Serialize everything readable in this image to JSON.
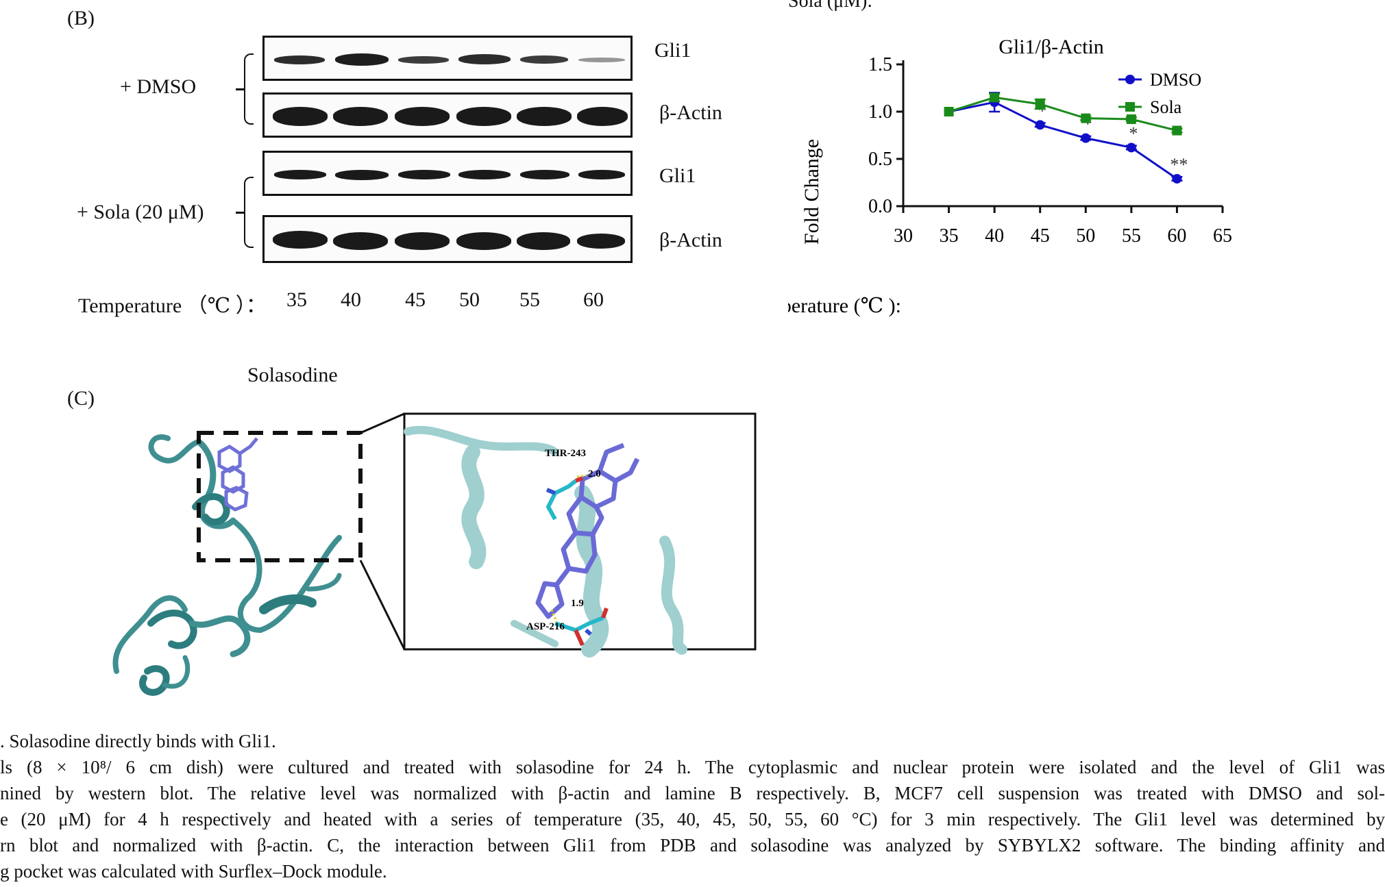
{
  "top_fragment": "Sola (μM):",
  "panel_b": {
    "label": "(B)",
    "blot": {
      "groups": [
        {
          "label": "+ DMSO",
          "rows": [
            {
              "name": "Gli1"
            },
            {
              "name": "β-Actin"
            }
          ]
        },
        {
          "label": "+ Sola (20 μM)",
          "rows": [
            {
              "name": "Gli1"
            },
            {
              "name": "β-Actin"
            }
          ]
        }
      ],
      "temperature_label": "Temperature （℃ ）：",
      "temperatures": [
        "35",
        "40",
        "45",
        "50",
        "55",
        "60"
      ]
    },
    "chart_data": {
      "type": "line",
      "title": "Gli1/β-Actin",
      "xlabel": "Temperature (℃ ): ",
      "ylabel": "Fold Change",
      "x_ticks": [
        "30",
        "35",
        "40",
        "45",
        "50",
        "55",
        "60",
        "65"
      ],
      "y_ticks": [
        "0.0",
        "0.5",
        "1.0",
        "1.5"
      ],
      "xlim": [
        30,
        65
      ],
      "ylim": [
        0,
        1.5
      ],
      "legend_position": "top-right",
      "series": [
        {
          "name": "DMSO",
          "color": "#1010c8",
          "marker": "circle",
          "x": [
            35,
            40,
            45,
            50,
            55,
            60
          ],
          "y": [
            1.0,
            1.1,
            0.86,
            0.72,
            0.62,
            0.29
          ],
          "err": [
            0.0,
            0.1,
            0.02,
            0.02,
            0.02,
            0.02
          ],
          "annotations": [
            "",
            "",
            "*",
            "*",
            "*",
            "**"
          ]
        },
        {
          "name": "Sola",
          "color": "#1a8a1a",
          "marker": "square",
          "x": [
            35,
            40,
            45,
            50,
            55,
            60
          ],
          "y": [
            1.0,
            1.15,
            1.08,
            0.93,
            0.92,
            0.8
          ],
          "err": [
            0.0,
            0.04,
            0.05,
            0.02,
            0.02,
            0.02
          ]
        }
      ]
    }
  },
  "panel_c": {
    "label": "(C)",
    "title": "Solasodine",
    "residues": {
      "thr": "THR-243",
      "asp": "ASP-216"
    },
    "distances": {
      "top": "2.0",
      "bottom": "1.9"
    }
  },
  "caption": {
    "lines": [
      ". Solasodine directly binds with Gli1.",
      "ls (8 × 10⁸/ 6 cm dish) were cultured and treated with solasodine for 24 h. The cytoplasmic and nuclear protein were isolated and the level of Gli1 was",
      "nined by western blot. The relative level was normalized with β-actin and lamine B respectively. B, MCF7 cell suspension was treated with DMSO and sol-",
      "e (20 μM) for 4 h respectively and heated with a series of temperature (35, 40, 45, 50, 55, 60 °C) for 3 min respectively. The Gli1 level was determined by",
      "rn blot and normalized with β-actin. C, the interaction between Gli1 from PDB and solasodine was analyzed by SYBYLX2 software. The binding affinity and",
      "g pocket was calculated with Surflex–Dock module."
    ]
  }
}
